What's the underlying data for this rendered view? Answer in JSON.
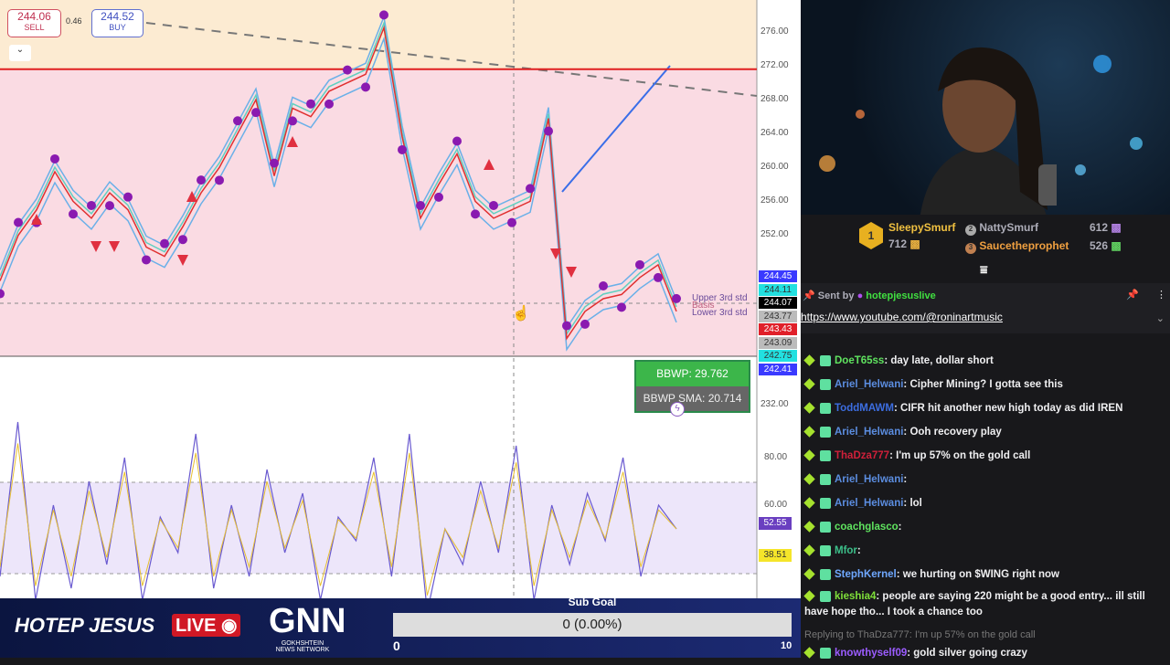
{
  "trade": {
    "sell_price": "244.06",
    "sell_label": "SELL",
    "spread": "0.46",
    "buy_price": "244.52",
    "buy_label": "BUY"
  },
  "chart_data": [
    {
      "type": "line",
      "title": "",
      "price_axis_ticks": [
        "276.00",
        "272.00",
        "268.00",
        "264.00",
        "260.00",
        "256.00",
        "252.00",
        "232.00"
      ],
      "price_path": [
        246.6,
        252,
        255,
        259.5,
        256,
        254,
        257,
        255,
        250.6,
        249.5,
        253,
        257,
        260,
        264,
        268,
        259,
        267,
        266,
        269,
        270,
        271,
        276.5,
        263.6,
        254,
        258,
        261.6,
        256,
        254,
        255,
        256,
        265.8,
        239.8,
        243,
        244.5,
        245,
        247,
        248.5,
        243
      ],
      "horizontal_line": 271.6,
      "price_tags": [
        {
          "v": "244.45",
          "bg": "#3a3aff",
          "fg": "#fff"
        },
        {
          "v": "244.11",
          "bg": "#22e0e0",
          "fg": "#333"
        },
        {
          "v": "244.07",
          "bg": "#000",
          "fg": "#fff"
        },
        {
          "v": "243.77",
          "bg": "#bbb",
          "fg": "#333"
        },
        {
          "v": "243.43",
          "bg": "#e0202a",
          "fg": "#fff"
        },
        {
          "v": "243.09",
          "bg": "#bbb",
          "fg": "#333"
        },
        {
          "v": "242.75",
          "bg": "#22e0e0",
          "fg": "#333"
        },
        {
          "v": "242.41",
          "bg": "#3a3aff",
          "fg": "#fff"
        }
      ],
      "band_labels": [
        "Upper 3rd std",
        "Basis",
        "Lower 3rd std"
      ]
    },
    {
      "type": "line",
      "osc_ticks": [
        "80.00",
        "60.00"
      ],
      "osc_tags": [
        {
          "v": "52.55",
          "bg": "#6a3fc0",
          "fg": "#fff"
        },
        {
          "v": "38.51",
          "bg": "#f5e52a",
          "fg": "#333"
        }
      ],
      "values": [
        30,
        95,
        20,
        60,
        25,
        70,
        35,
        80,
        20,
        55,
        40,
        90,
        25,
        60,
        30,
        75,
        40,
        65,
        20,
        55,
        45,
        80,
        30,
        90,
        15,
        50,
        35,
        70,
        40,
        85,
        20,
        60,
        35,
        65,
        45,
        80,
        30,
        60,
        50
      ]
    }
  ],
  "bbwp": {
    "value": "BBWP: 29.762",
    "sma": "BBWP SMA: 20.714"
  },
  "leaderboard": {
    "first": {
      "rank": "1",
      "name": "SleepySmurf",
      "count": "712"
    },
    "second": {
      "rank": "2",
      "name": "NattySmurf",
      "count": "612"
    },
    "third": {
      "rank": "3",
      "name": "Saucetheprophet",
      "count": "526"
    }
  },
  "pinned": {
    "sent_by": "Sent by",
    "user": "hotepjesuslive",
    "link": "https://www.youtube.com/@roninartmusic"
  },
  "chat": [
    {
      "user": "DoeT65ss",
      "color": "#5fe35f",
      "text": ": day late, dollar short"
    },
    {
      "user": "Ariel_Helwani",
      "color": "#5b8de0",
      "text": ": Cipher Mining? I gotta see this"
    },
    {
      "user": "ToddMAWM",
      "color": "#3c6de0",
      "text": ": CIFR hit another new high today as did IREN"
    },
    {
      "user": "Ariel_Helwani",
      "color": "#5b8de0",
      "text": ": Ooh recovery play"
    },
    {
      "user": "ThaDza777",
      "color": "#d0203a",
      "text": ": I'm up 57% on the gold call"
    },
    {
      "user": "Ariel_Helwani",
      "color": "#5b8de0",
      "text": ":"
    },
    {
      "user": "Ariel_Helwani",
      "color": "#5b8de0",
      "text": ": lol"
    },
    {
      "user": "coachglasco",
      "color": "#5fe35f",
      "text": ":"
    },
    {
      "user": "Mfor",
      "color": "#3cc08a",
      "text": ":"
    },
    {
      "user": "StephKernel",
      "color": "#6fa8ff",
      "text": ": we hurting on $WING right now"
    },
    {
      "user": "kieshia4",
      "color": "#7fe03a",
      "text": ": people are saying 220 might be a good entry... ill still have hope tho... I took a chance too"
    },
    {
      "reply": "Replying to ThaDza777: I'm up 57% on the gold call",
      "user": "knowthyself09",
      "color": "#9b5cff",
      "text": ": gold silver going crazy"
    }
  ],
  "overlay": {
    "show": "HOTEP JESUS",
    "live": "LIVE",
    "logo": "GNN",
    "logo_sub1": "GOKHSHTEIN",
    "logo_sub2": "NEWS NETWORK",
    "goal_title": "Sub Goal",
    "goal_value": "0 (0.00%)",
    "goal_progress": 0,
    "goal_min": "0",
    "goal_max": "10"
  }
}
